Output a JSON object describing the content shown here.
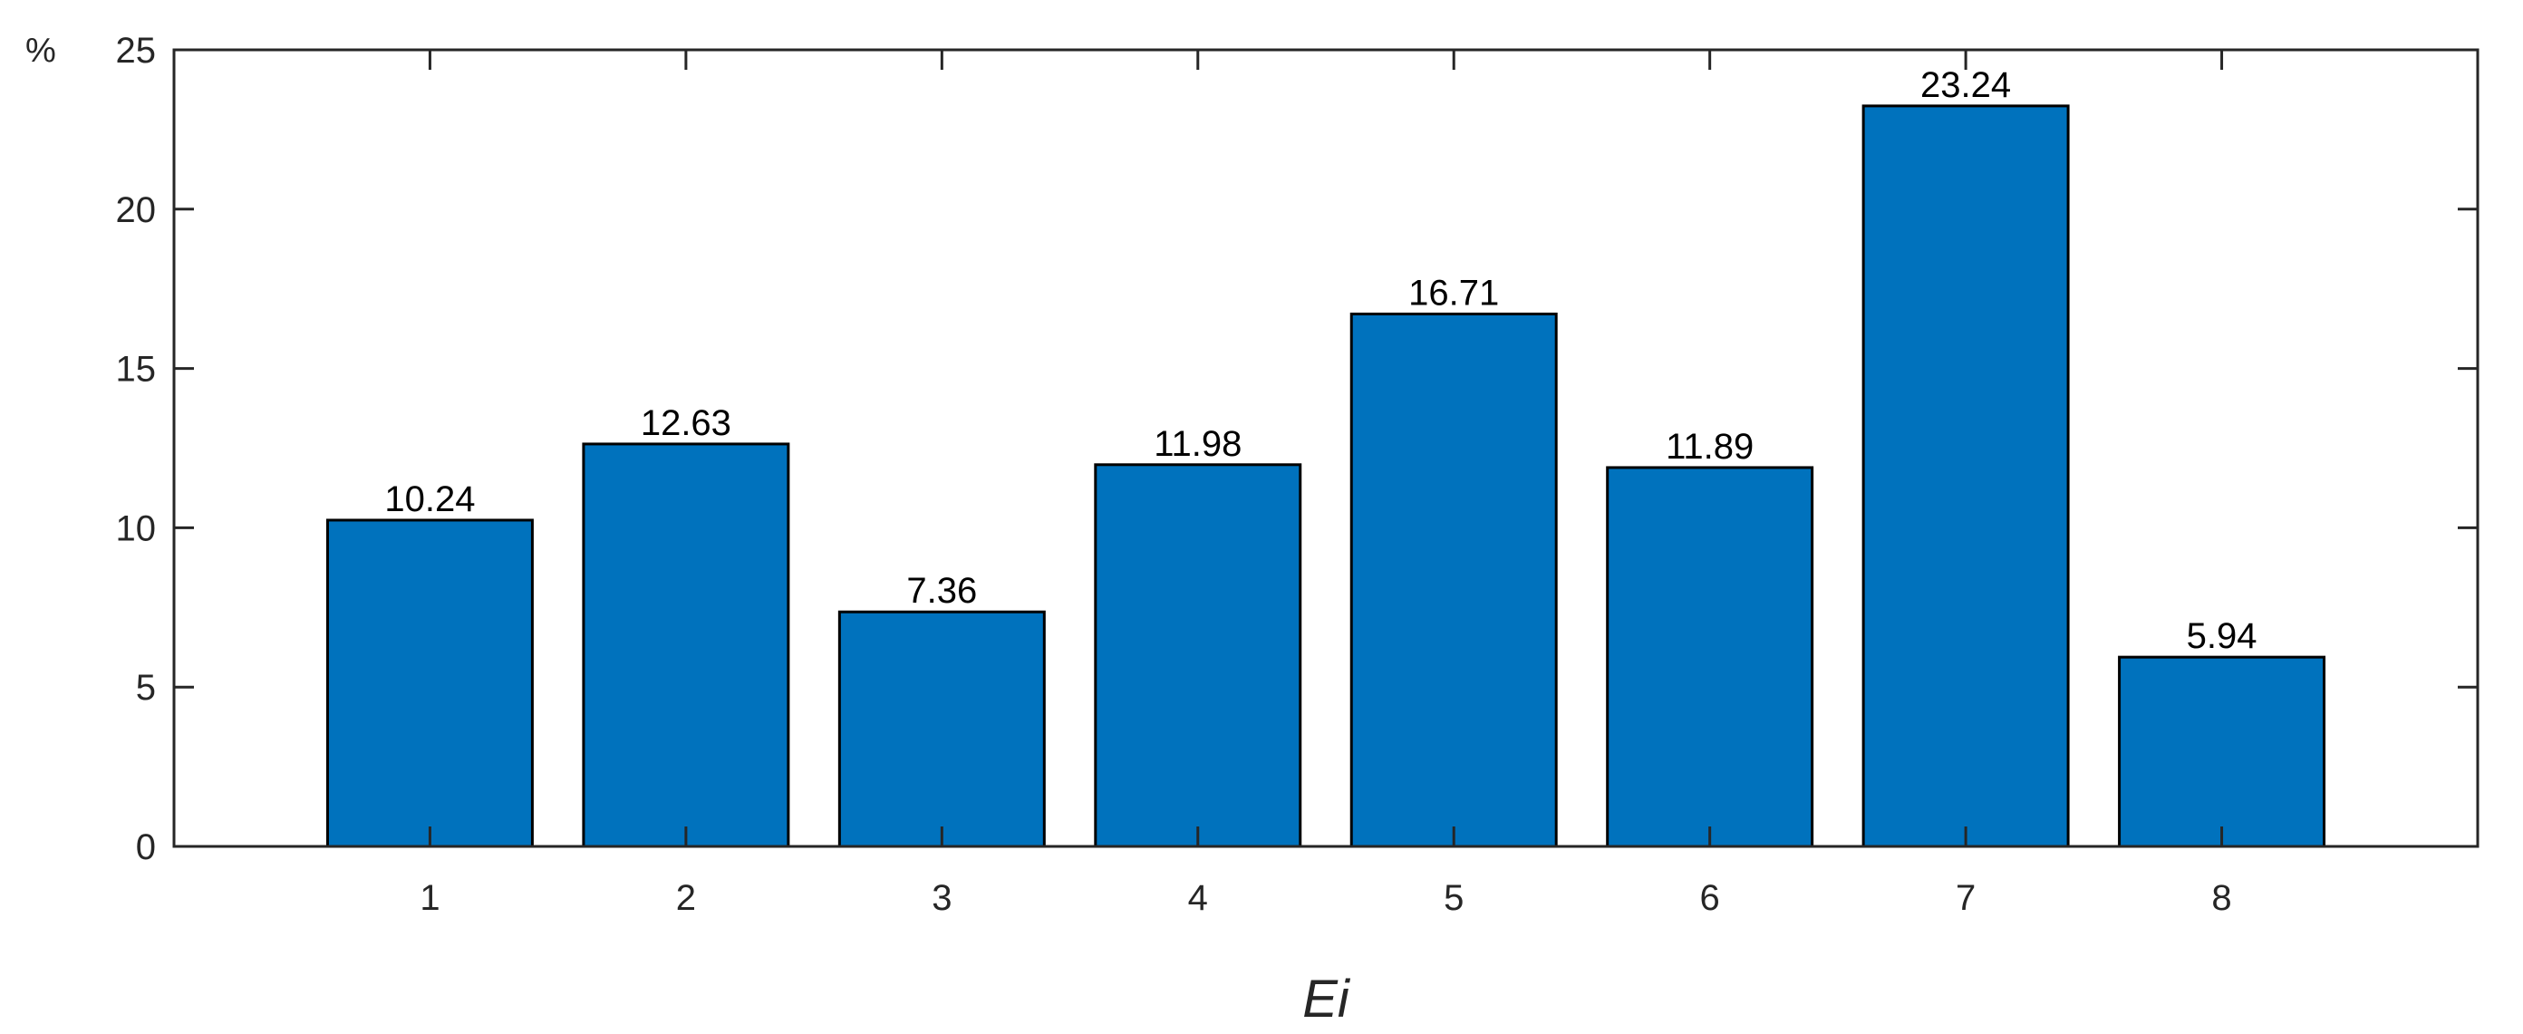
{
  "chart_data": {
    "type": "bar",
    "categories": [
      "1",
      "2",
      "3",
      "4",
      "5",
      "6",
      "7",
      "8"
    ],
    "values": [
      10.24,
      12.63,
      7.36,
      11.98,
      16.71,
      11.89,
      23.24,
      5.94
    ],
    "data_labels": [
      "10.24",
      "12.63",
      "7.36",
      "11.98",
      "16.71",
      "11.89",
      "23.24",
      "5.94"
    ],
    "title": "",
    "xlabel": "Ei",
    "ylabel": "%",
    "ylim": [
      0,
      25
    ],
    "yticks": [
      "0",
      "5",
      "10",
      "15",
      "20",
      "25"
    ],
    "xlim": [
      0,
      9
    ],
    "grid": false,
    "bar_color": "#0072BD",
    "bar_edge_color": "#000000"
  }
}
